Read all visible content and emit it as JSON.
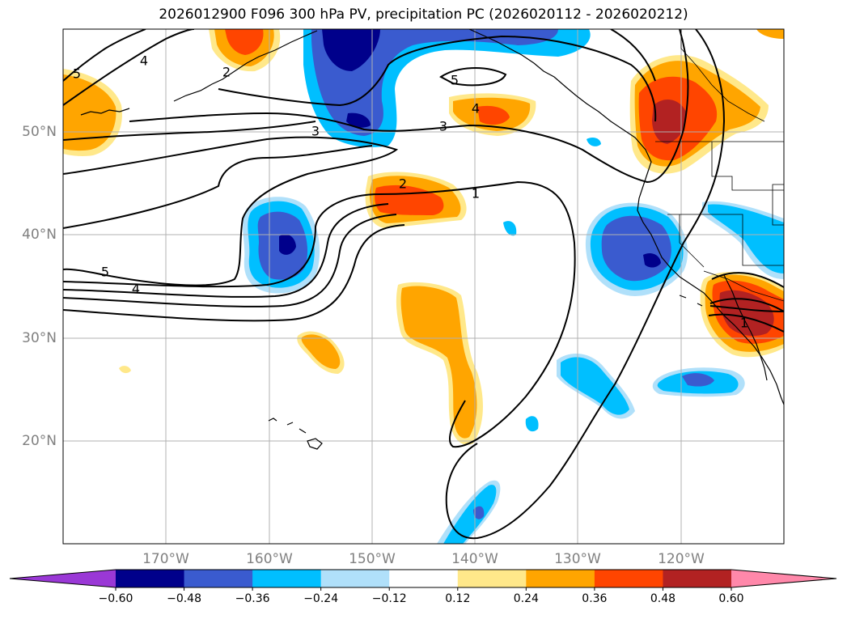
{
  "title": "2026012900 F096 300 hPa PV, precipitation PC (2026020112 - 2026020212)",
  "lat_labels": [
    "50°N",
    "40°N",
    "30°N",
    "20°N"
  ],
  "lon_labels": [
    "170°W",
    "160°W",
    "150°W",
    "140°W",
    "130°W",
    "120°W"
  ],
  "contour_labels": [
    "5",
    "4",
    "2",
    "3",
    "5",
    "4",
    "3",
    "2",
    "1",
    "5",
    "4",
    "1"
  ],
  "colorbar": {
    "tick_labels": [
      "−0.60",
      "−0.48",
      "−0.36",
      "−0.24",
      "−0.12",
      "0.12",
      "0.24",
      "0.36",
      "0.48",
      "0.60"
    ],
    "colors": [
      "#9a38d6",
      "#00008b",
      "#3a5bcf",
      "#00bfff",
      "#b0e0fa",
      "#ffffff",
      "#ffe88a",
      "#ffa500",
      "#ff4500",
      "#b22222",
      "#ff88aa"
    ]
  },
  "fill_colors": {
    "dark_blue": "#00008b",
    "mid_blue": "#3a5bcf",
    "sky_blue": "#00bfff",
    "light_blue": "#b0e0fa",
    "light_yellow": "#ffe88a",
    "orange": "#ffa500",
    "red_orange": "#ff4500",
    "dark_red": "#b22222"
  }
}
